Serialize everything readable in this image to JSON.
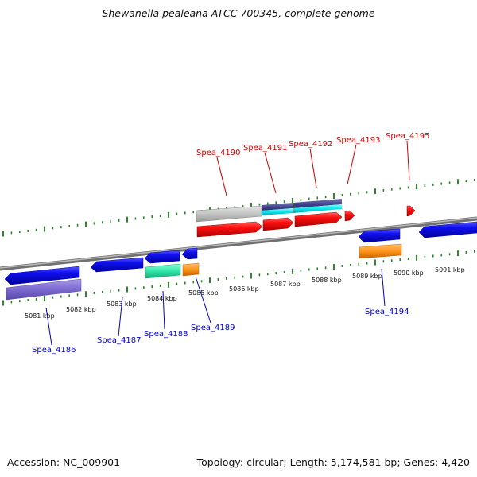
{
  "title": "Shewanella pealeana ATCC 700345, complete genome",
  "footer": {
    "accession": "Accession: NC_009901",
    "topology": "Topology: circular; Length: 5,174,581 bp; Genes: 4,420"
  },
  "colors": {
    "forward_label": "#cc0000",
    "reverse_label": "#0000cc",
    "tick": "#2a8a2a",
    "backbone": "#8a8a8a"
  },
  "kbp_labels": [
    "5081 kbp",
    "5082 kbp",
    "5083 kbp",
    "5084 kbp",
    "5085 kbp",
    "5086 kbp",
    "5087 kbp",
    "5088 kbp",
    "5089 kbp",
    "5090 kbp",
    "5091 kbp"
  ],
  "forward_genes": [
    {
      "name": "Spea_4190"
    },
    {
      "name": "Spea_4191"
    },
    {
      "name": "Spea_4192"
    },
    {
      "name": "Spea_4193"
    },
    {
      "name": "Spea_4195"
    }
  ],
  "reverse_genes": [
    {
      "name": "Spea_4186"
    },
    {
      "name": "Spea_4187"
    },
    {
      "name": "Spea_4188"
    },
    {
      "name": "Spea_4189"
    },
    {
      "name": "Spea_4194"
    }
  ]
}
